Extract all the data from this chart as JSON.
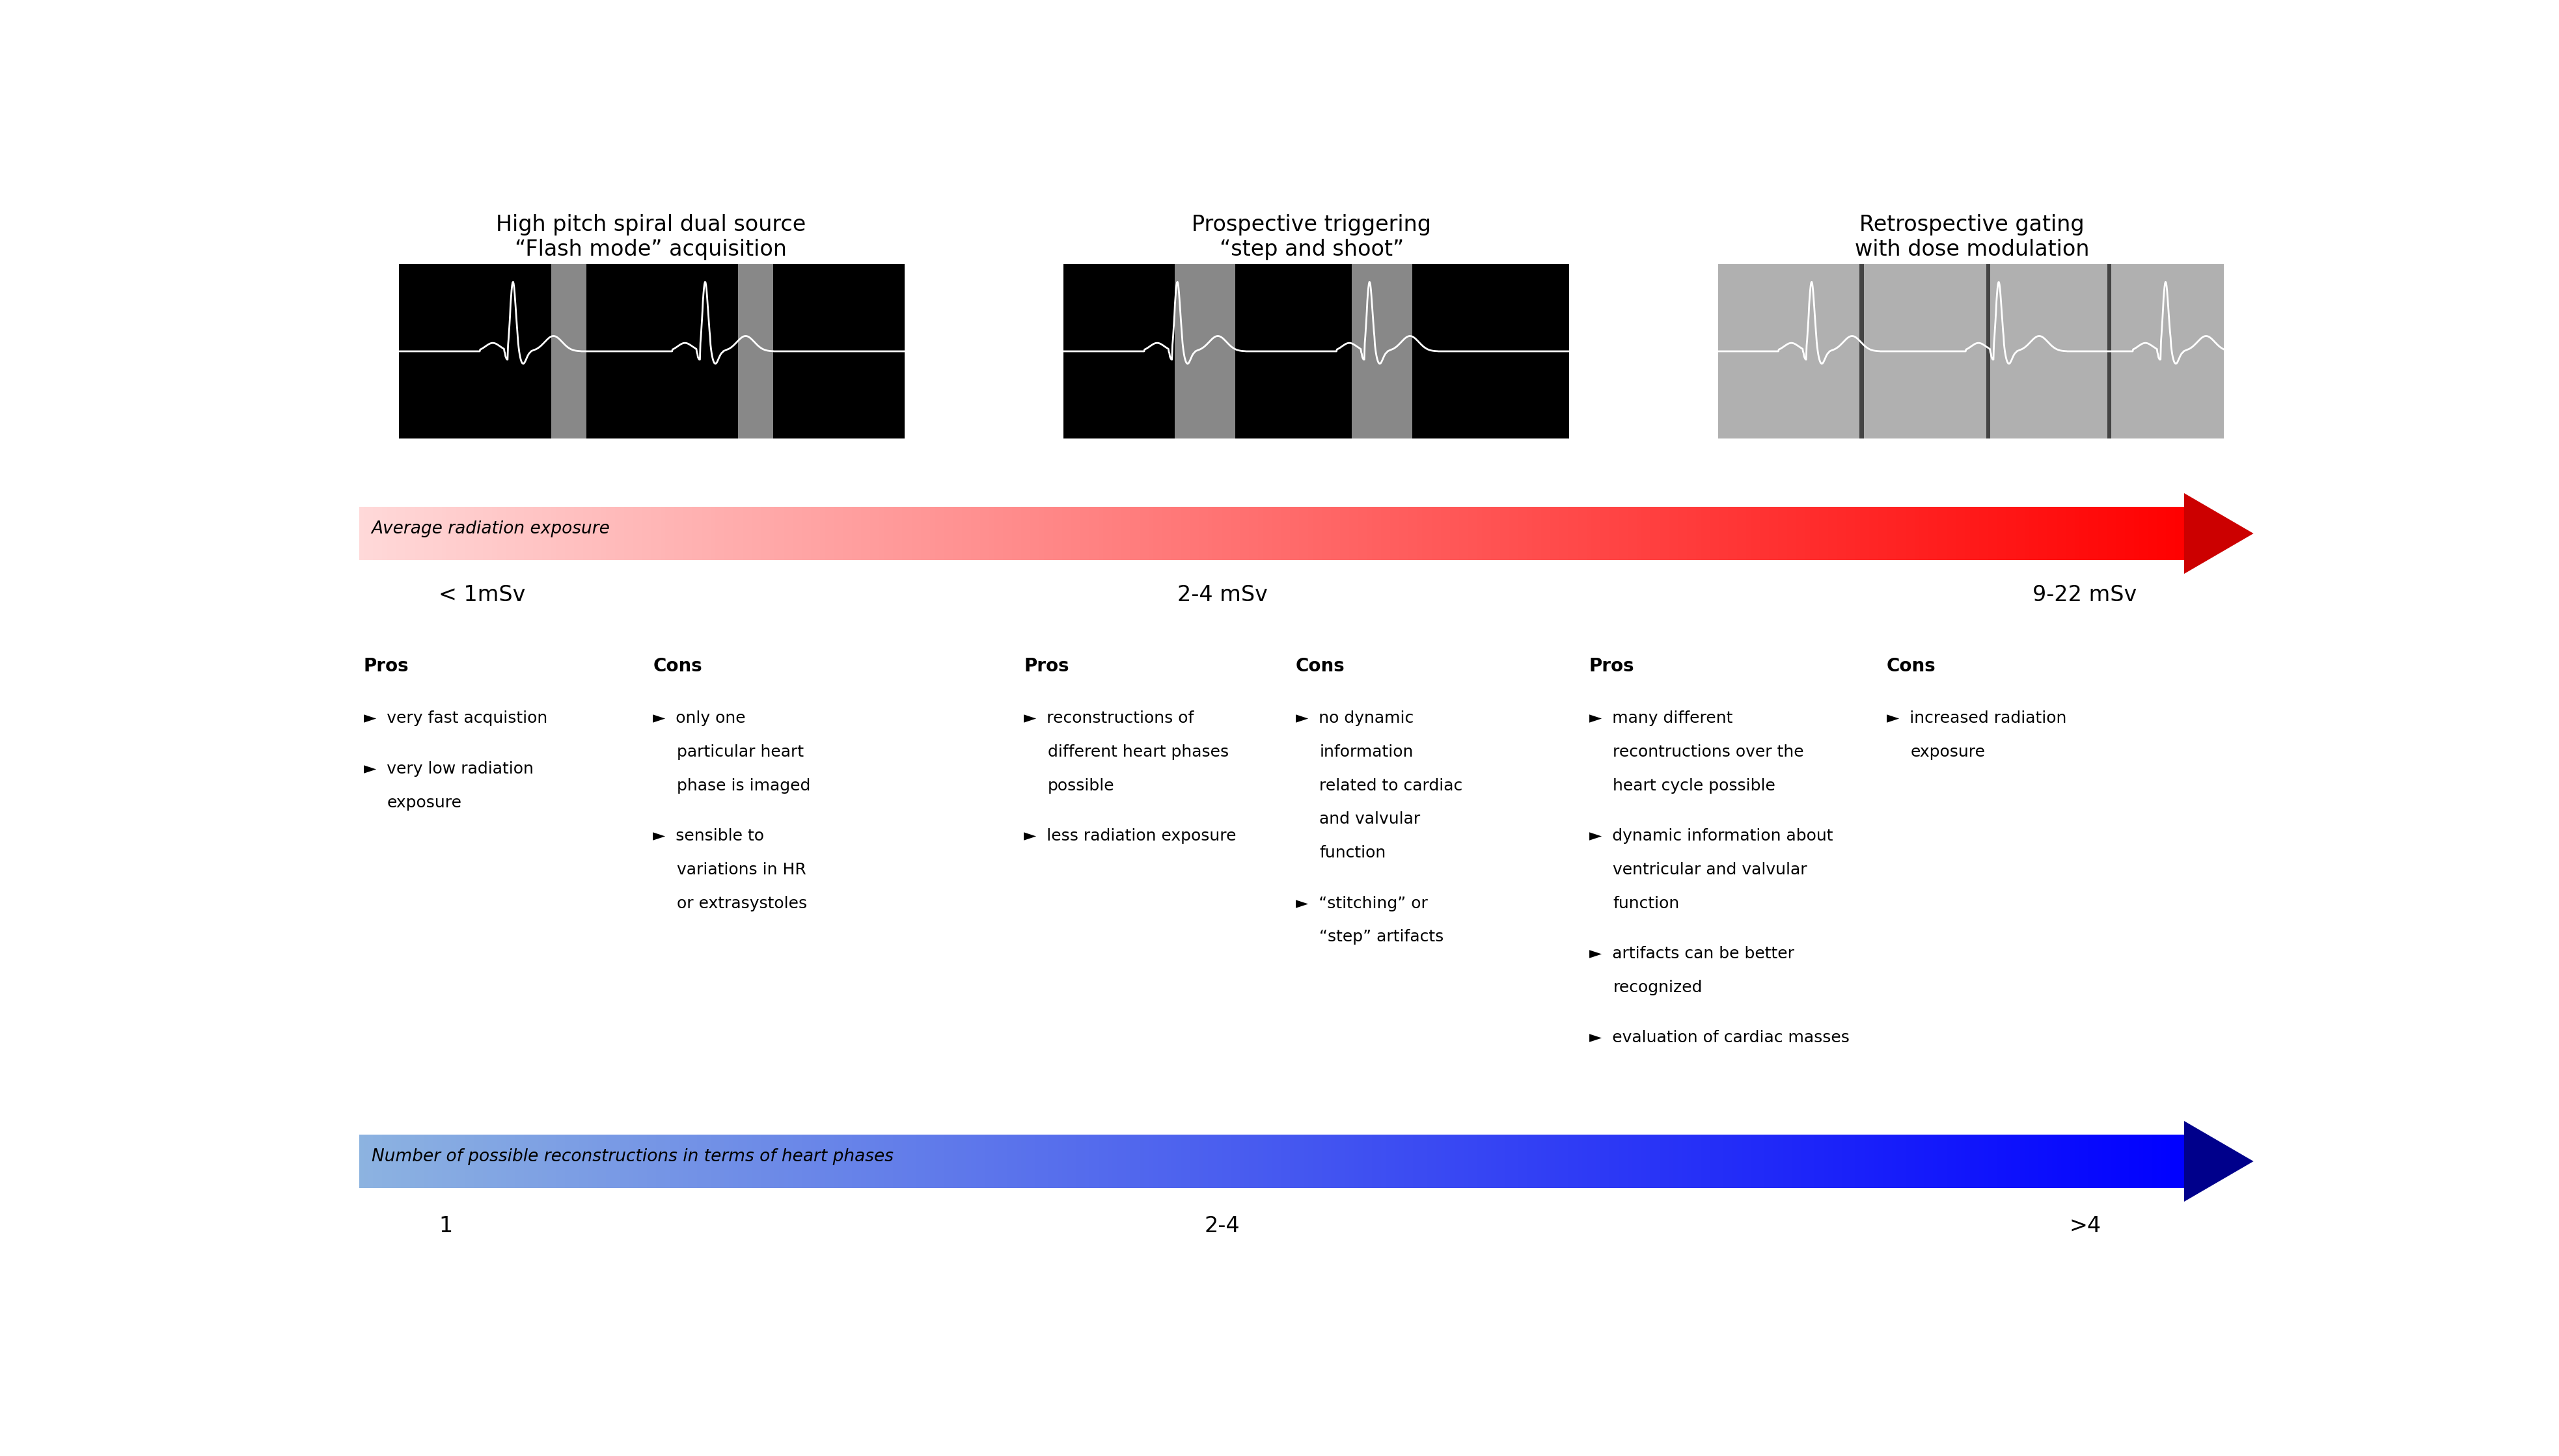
{
  "title1": "High pitch spiral dual source\n“Flash mode” acquisition",
  "title2": "Prospective triggering\n“step and shoot”",
  "title3": "Retrospective gating\nwith dose modulation",
  "rad_label": "Average radiation exposure",
  "rad_val1": "< 1mSv",
  "rad_val2": "2-4 mSv",
  "rad_val3": "9-22 mSv",
  "recon_label": "Number of possible reconstructions in terms of heart phases",
  "recon_val1": "1",
  "recon_val2": "2-4",
  "recon_val3": ">4",
  "pros1_header": "Pros",
  "pros1_items": [
    "very fast acquistion",
    "very low radiation\nexposure"
  ],
  "cons1_header": "Cons",
  "cons1_items": [
    "only one\nparticular heart\nphase is imaged",
    "sensible to\nvariations in HR\nor extrasystoles"
  ],
  "pros2_header": "Pros",
  "pros2_items": [
    "reconstructions of\ndifferent heart phases\npossible",
    "less radiation exposure"
  ],
  "cons2_header": "Cons",
  "cons2_items": [
    "no dynamic\ninformation\nrelated to cardiac\nand valvular\nfunction",
    "“stitching” or\n“step” artifacts"
  ],
  "pros3_header": "Pros",
  "pros3_items": [
    "many different\nrecontructions over the\nheart cycle possible",
    "dynamic information about\nventricular and valvular\nfunction",
    "artifacts can be better\nrecognized",
    "evaluation of cardiac masses"
  ],
  "cons3_header": "Cons",
  "cons3_items": [
    "increased radiation\nexposure"
  ],
  "bg_color": "#ffffff",
  "text_color": "#000000",
  "header_color": "#000000"
}
